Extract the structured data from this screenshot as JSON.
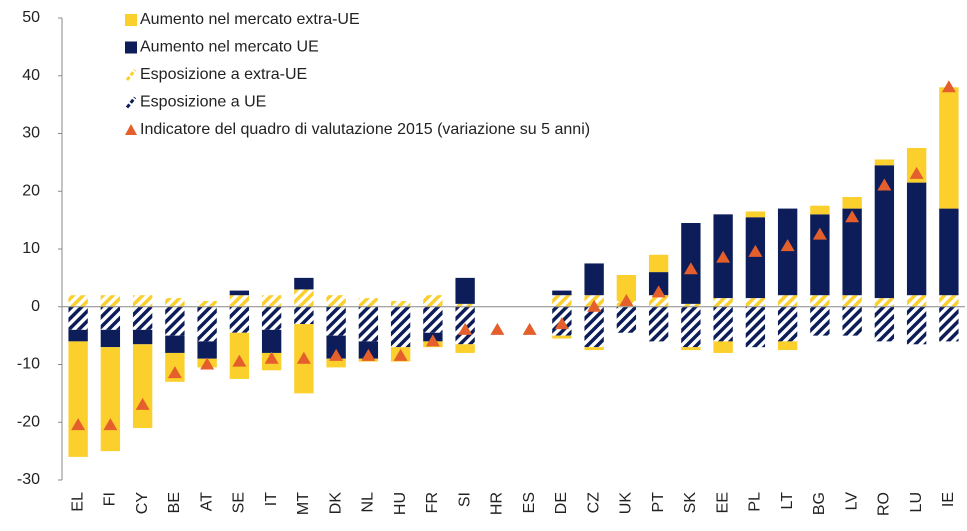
{
  "chart_data": {
    "type": "bar",
    "categories": [
      "EL",
      "FI",
      "CY",
      "BE",
      "AT",
      "SE",
      "IT",
      "MT",
      "DK",
      "NL",
      "HU",
      "FR",
      "SI",
      "HR",
      "ES",
      "DE",
      "CZ",
      "UK",
      "PT",
      "SK",
      "EE",
      "PL",
      "LT",
      "BG",
      "LV",
      "RO",
      "LU",
      "IE"
    ],
    "series": [
      {
        "name": "Aumento nel mercato extra-UE",
        "color": "#fbcf2c",
        "pattern": "solid",
        "values": [
          -20,
          -18,
          -14.5,
          -5,
          -1.5,
          -8,
          -3,
          -12,
          -1.5,
          -0.5,
          -2.5,
          -1,
          -1.5,
          0,
          0,
          -0.5,
          -0.5,
          4.5,
          3,
          -0.5,
          -2,
          1,
          -1.5,
          1.5,
          2,
          1,
          6,
          21
        ]
      },
      {
        "name": "Aumento nel mercato UE",
        "color": "#0c1d5a",
        "pattern": "solid",
        "values": [
          -2,
          -3,
          -2.5,
          -3,
          -3,
          0.8,
          -4,
          2,
          -4,
          -3,
          0,
          -1.5,
          4.5,
          0,
          0,
          0.8,
          5.5,
          0,
          4,
          14,
          14.5,
          14,
          15,
          14,
          15,
          23,
          19.5,
          15
        ]
      },
      {
        "name": "Esposizione a extra-UE",
        "color": "#fbcf2c",
        "pattern": "hatch",
        "values": [
          2,
          2,
          2,
          1.5,
          1,
          2,
          2,
          3,
          2,
          1.5,
          1,
          2,
          0.5,
          0,
          0,
          2,
          2,
          1,
          2,
          0.5,
          1.5,
          1.5,
          2,
          2,
          2,
          1.5,
          2,
          2
        ]
      },
      {
        "name": "Esposizione a UE",
        "color": "#0c1d5a",
        "pattern": "hatch",
        "values": [
          -4,
          -4,
          -4,
          -5,
          -6,
          -4.5,
          -4,
          -3,
          -5,
          -6,
          -7,
          -4.5,
          -6.5,
          0,
          0,
          -5,
          -7,
          -4.5,
          -6,
          -7,
          -6,
          -7,
          -6,
          -5,
          -5,
          -6,
          -6.5,
          -6
        ]
      },
      {
        "name": "Indicatore del quadro di valutazione 2015 (variazione su 5 anni)",
        "color": "#e45f2b",
        "marker": "triangle",
        "values": [
          -20.5,
          -20.5,
          -17,
          -11.5,
          -10,
          -9.5,
          -9,
          -9,
          -8.5,
          -8.5,
          -8.5,
          -6,
          -4,
          -4,
          -4,
          -3,
          0,
          1,
          2.5,
          6.5,
          8.5,
          9.5,
          10.5,
          12.5,
          15.5,
          21,
          23,
          38
        ]
      }
    ],
    "stack_order": [
      2,
      3,
      1,
      0
    ],
    "ylim": [
      -30,
      50
    ],
    "yticks": [
      -30,
      -20,
      -10,
      0,
      10,
      20,
      30,
      40,
      50
    ]
  }
}
